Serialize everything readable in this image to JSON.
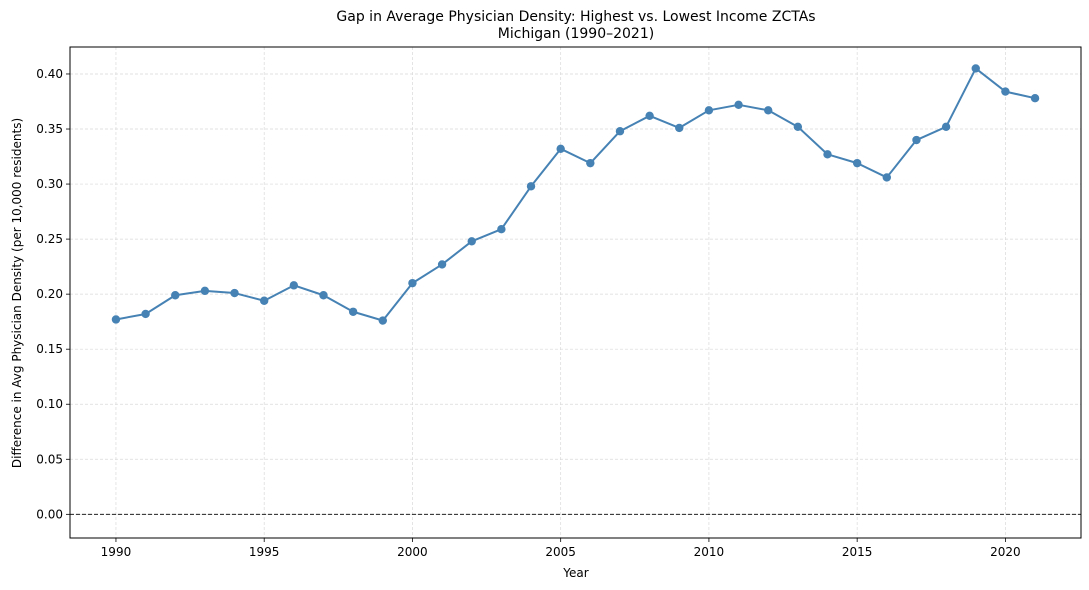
{
  "chart_data": {
    "type": "line",
    "title": "Gap in Average Physician Density: Highest vs. Lowest Income ZCTAs",
    "subtitle": "Michigan (1990–2021)",
    "xlabel": "Year",
    "ylabel": "Difference in Avg Physician Density (per 10,000 residents)",
    "xlim": [
      1988.45,
      2022.55
    ],
    "ylim": [
      -0.0215,
      0.4245
    ],
    "x_ticks": [
      1990,
      1995,
      2000,
      2005,
      2010,
      2015,
      2020
    ],
    "y_ticks": [
      0.0,
      0.05,
      0.1,
      0.15,
      0.2,
      0.25,
      0.3,
      0.35,
      0.4
    ],
    "grid": true,
    "reference_line": {
      "y": 0.0,
      "style": "dashed",
      "color": "#000000"
    },
    "series": [
      {
        "color": "#4682b4",
        "x": [
          1990,
          1991,
          1992,
          1993,
          1994,
          1995,
          1996,
          1997,
          1998,
          1999,
          2000,
          2001,
          2002,
          2003,
          2004,
          2005,
          2006,
          2007,
          2008,
          2009,
          2010,
          2011,
          2012,
          2013,
          2014,
          2015,
          2016,
          2017,
          2018,
          2019,
          2020,
          2021
        ],
        "values": [
          0.177,
          0.182,
          0.199,
          0.203,
          0.201,
          0.194,
          0.208,
          0.199,
          0.184,
          0.176,
          0.21,
          0.227,
          0.248,
          0.259,
          0.298,
          0.332,
          0.319,
          0.348,
          0.362,
          0.351,
          0.367,
          0.372,
          0.367,
          0.352,
          0.327,
          0.319,
          0.306,
          0.34,
          0.352,
          0.405,
          0.384,
          0.378
        ]
      }
    ]
  }
}
